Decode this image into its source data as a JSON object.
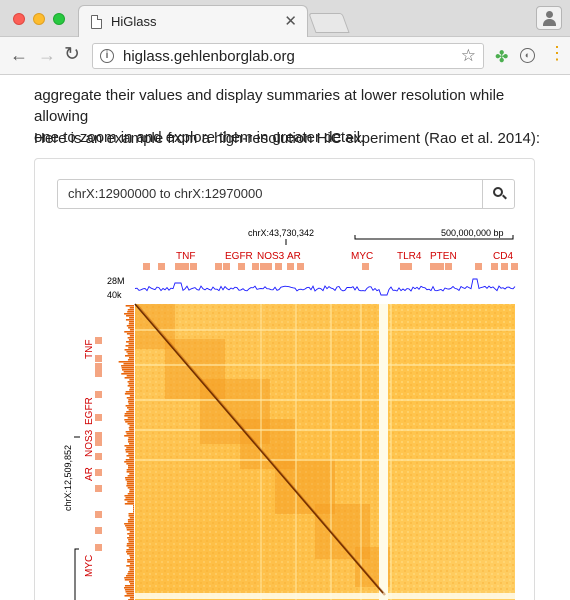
{
  "browser": {
    "tab_title": "HiGlass",
    "url": "higlass.gehlenborglab.org"
  },
  "page": {
    "paragraph1_line1": "aggregate their values and display summaries at lower resolution while allowing",
    "paragraph1_line2": "one to zoom in and explore them in greater detail.",
    "paragraph2": "Here is an example from a high-resolution HiC experiment (Rao et al. 2014):"
  },
  "viewer": {
    "search_value": "chrX:12900000 to chrX:12970000",
    "top_position_label": "chrX:43,730,342",
    "scale_bar_label": "500,000,000 bp",
    "left_position_label": "chrX:12,509,852",
    "line_track_max": "28M",
    "line_track_min": "40k",
    "top_genes": [
      "TNF",
      "EGFR",
      "NOS3",
      "AR",
      "MYC",
      "TLR4",
      "PTEN",
      "CD4"
    ],
    "left_genes": [
      "TNF",
      "EGFR",
      "NOS3",
      "AR",
      "MYC"
    ],
    "colors": {
      "gene_label": "#d00000",
      "gene_box": "#f4a582",
      "line_track": "#1a1aff",
      "heatmap_light": "#fff2c0",
      "heatmap_mid": "#ffb52e",
      "heatmap_dark": "#6b2a00",
      "bar_track": "#e8650a"
    }
  }
}
